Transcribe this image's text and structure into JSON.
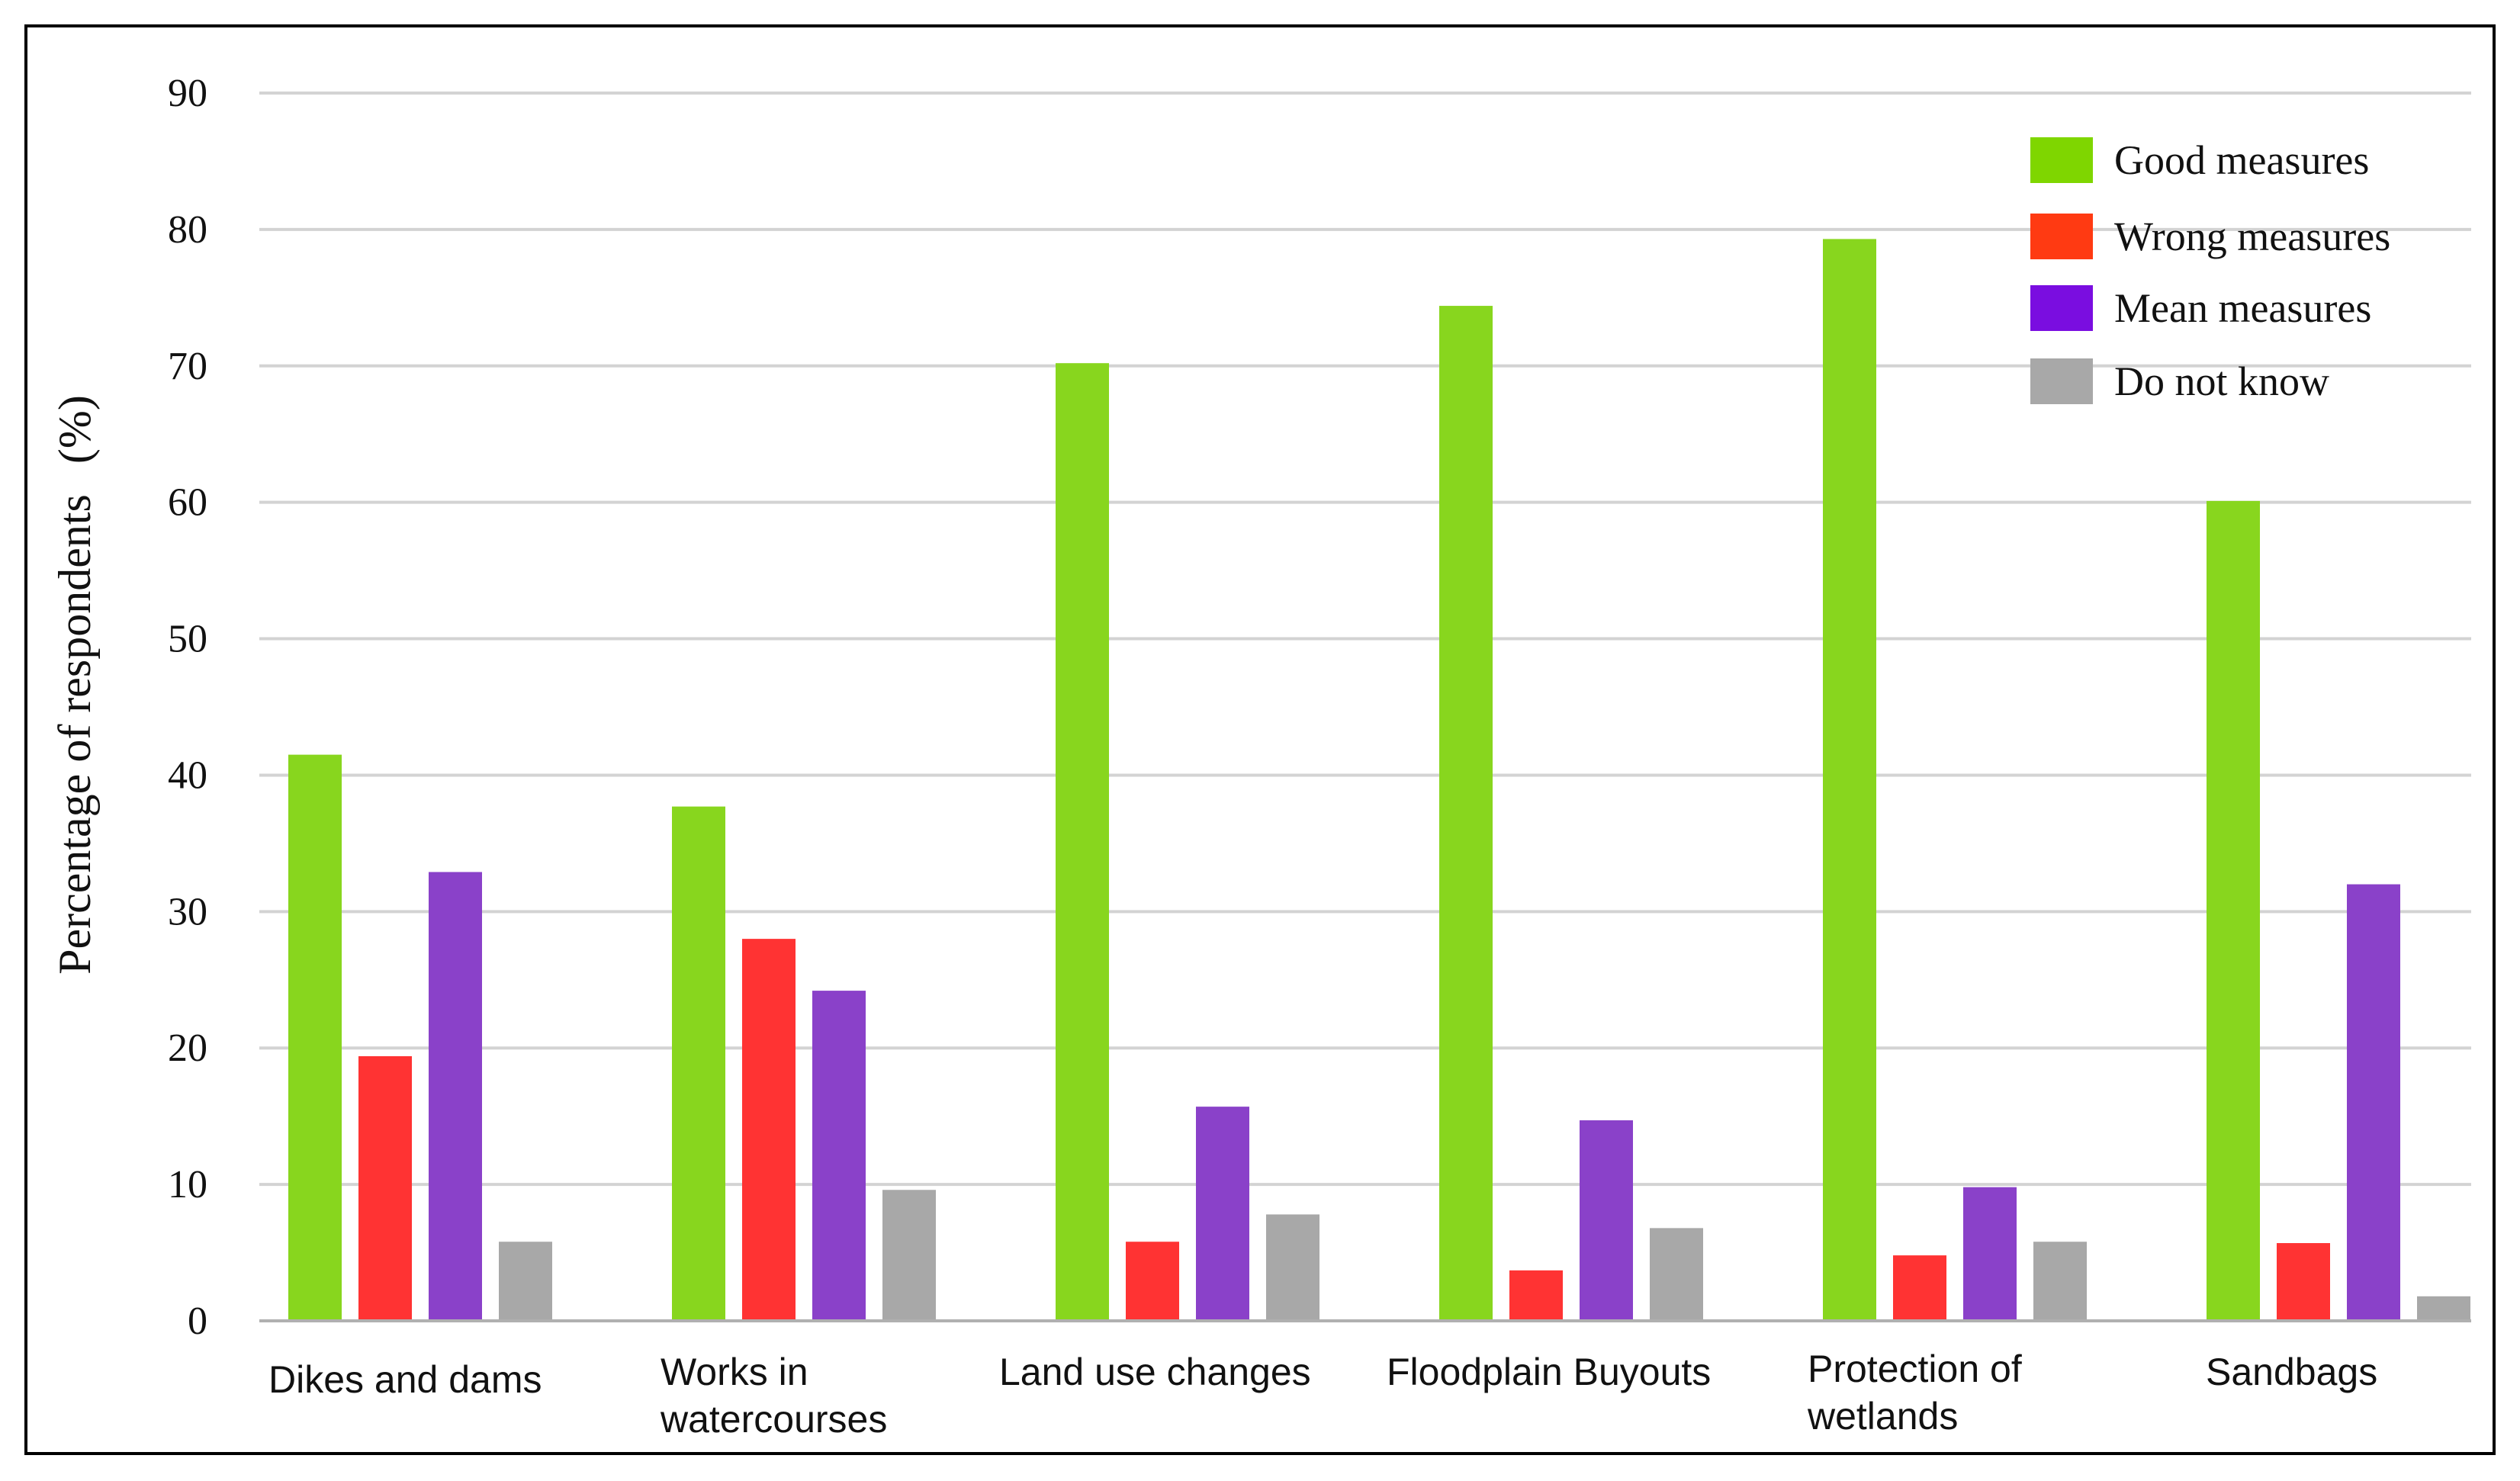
{
  "chart_data": {
    "type": "bar",
    "title": "",
    "xlabel": "",
    "ylabel": "Percentage of respondents",
    "ylabel_unit": "(%)",
    "ylim": [
      0,
      90
    ],
    "yticks": [
      "0",
      "10",
      "20",
      "30",
      "40",
      "50",
      "60",
      "70",
      "80",
      "90"
    ],
    "grid": true,
    "legend_position": "top-right",
    "categories": [
      [
        "Dikes and dams"
      ],
      [
        "Works in",
        "watercourses"
      ],
      [
        "Land use changes"
      ],
      [
        "Floodplain Buyouts"
      ],
      [
        "Protection of",
        "wetlands"
      ],
      [
        "Sandbags"
      ]
    ],
    "series": [
      {
        "name": "Good measures",
        "color": "#88d61e",
        "legend_color": "#7fd600",
        "values": [
          41.5,
          37.7,
          70.2,
          74.4,
          79.3,
          60.1
        ]
      },
      {
        "name": "Wrong measures",
        "color": "#ff3333",
        "legend_color": "#ff3a12",
        "values": [
          19.4,
          28.0,
          5.8,
          3.7,
          4.8,
          5.7
        ]
      },
      {
        "name": "Mean measures",
        "color": "#8a41c9",
        "legend_color": "#7a0de0",
        "values": [
          32.9,
          24.2,
          15.7,
          14.7,
          9.8,
          32.0
        ]
      },
      {
        "name": "Do not know",
        "color": "#a8a8a8",
        "legend_color": "#a8a8a8",
        "values": [
          5.8,
          9.6,
          7.8,
          6.8,
          5.8,
          1.8
        ]
      }
    ]
  }
}
